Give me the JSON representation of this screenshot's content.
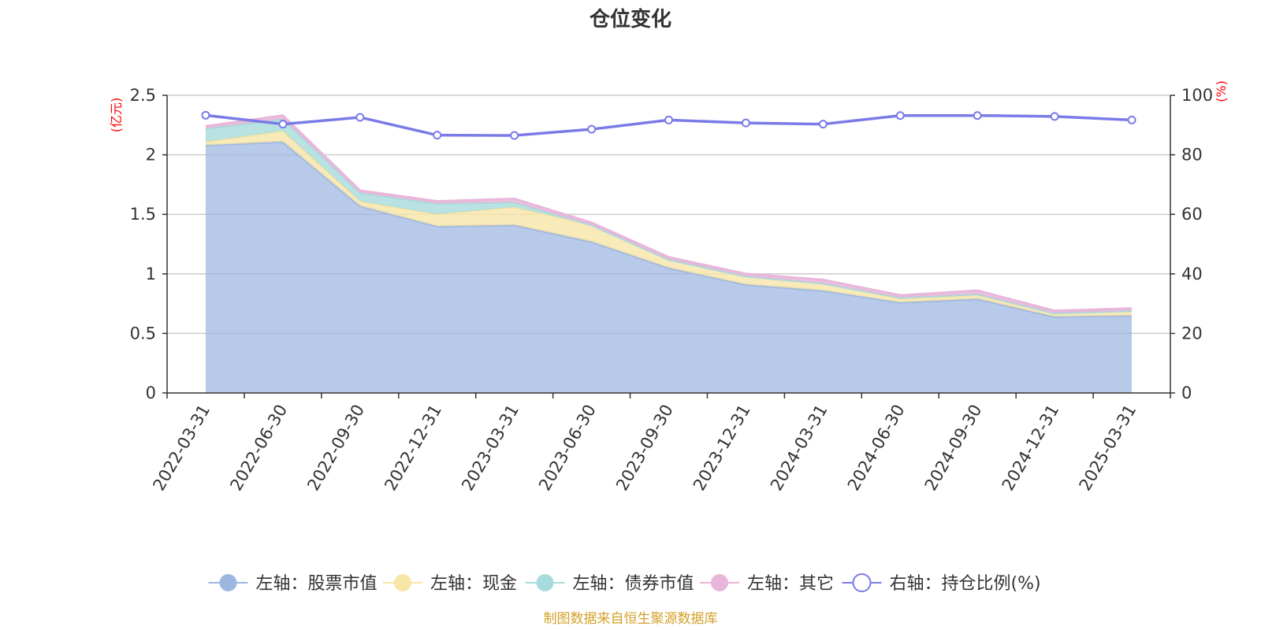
{
  "chart_data": {
    "type": "area",
    "title": "仓位变化",
    "left_axis_unit": "(亿元)",
    "right_axis_unit": "(%)",
    "categories": [
      "2022-03-31",
      "2022-06-30",
      "2022-09-30",
      "2022-12-31",
      "2023-03-31",
      "2023-06-30",
      "2023-09-30",
      "2023-12-31",
      "2024-03-31",
      "2024-06-30",
      "2024-09-30",
      "2024-12-31",
      "2025-03-31"
    ],
    "ylim_left": [
      0,
      2.5
    ],
    "yticks_left": [
      "0",
      "0.5",
      "1",
      "1.5",
      "2",
      "2.5"
    ],
    "ylim_right": [
      0,
      100
    ],
    "yticks_right": [
      "0",
      "20",
      "40",
      "60",
      "80",
      "100"
    ],
    "stacked": true,
    "series": [
      {
        "name": "左轴：股票市值",
        "axis": "left",
        "type": "area",
        "color": "#9db6e0",
        "values": [
          2.08,
          2.11,
          1.57,
          1.4,
          1.41,
          1.27,
          1.05,
          0.91,
          0.86,
          0.76,
          0.79,
          0.64,
          0.65
        ]
      },
      {
        "name": "左轴：现金",
        "axis": "left",
        "type": "area",
        "color": "#f8e5a8",
        "values": [
          0.03,
          0.09,
          0.04,
          0.1,
          0.15,
          0.14,
          0.07,
          0.07,
          0.06,
          0.03,
          0.03,
          0.03,
          0.04
        ]
      },
      {
        "name": "左轴：债券市值",
        "axis": "left",
        "type": "area",
        "color": "#a8dcdc",
        "values": [
          0.11,
          0.1,
          0.07,
          0.09,
          0.04,
          0.0,
          0.0,
          0.0,
          0.0,
          0.01,
          0.01,
          0.0,
          0.0
        ]
      },
      {
        "name": "左轴：其它",
        "axis": "left",
        "type": "area",
        "color": "#e8b6da",
        "values": [
          0.02,
          0.03,
          0.02,
          0.02,
          0.03,
          0.02,
          0.02,
          0.02,
          0.03,
          0.02,
          0.03,
          0.02,
          0.02
        ]
      },
      {
        "name": "右轴：持仓比例(%)",
        "axis": "right",
        "type": "line",
        "color": "#7b7be8",
        "values": [
          93.3,
          90.3,
          92.6,
          86.6,
          86.5,
          88.6,
          91.7,
          90.7,
          90.3,
          93.2,
          93.2,
          92.9,
          91.7
        ]
      }
    ],
    "grid": true,
    "legend_position": "bottom"
  },
  "source_note": "制图数据来自恒生聚源数据库",
  "colors": {
    "title": "#333333",
    "axis": "#333333",
    "grid": "#cccccc",
    "unit_label": "#ff0000",
    "source_note": "#d4a02a"
  }
}
